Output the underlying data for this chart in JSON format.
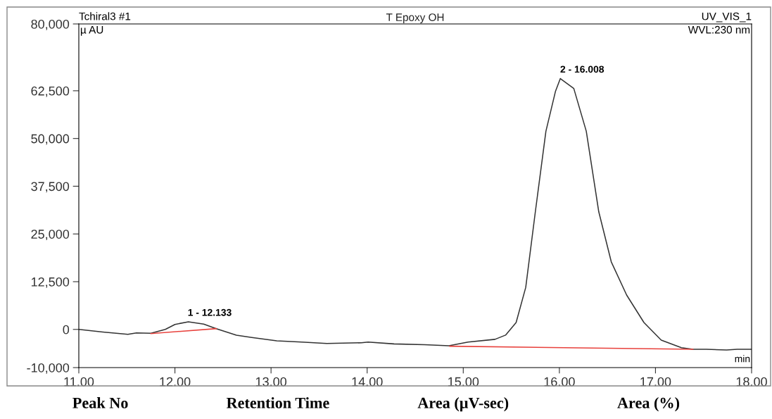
{
  "chart_data": {
    "type": "line",
    "title": "T Epoxy OH",
    "xlabel": "min",
    "ylabel": "µ AU",
    "annotations": [
      "Tchiral3 #1",
      "UV_VIS_1",
      "WVL:230 nm",
      "Peak No",
      "Retention Time",
      "Area (µV-sec)",
      "Area (%)",
      {
        "text": "1 - 12.133",
        "x": 12.133,
        "y": 2000
      },
      {
        "text": "2 - 16.008",
        "x": 16.008,
        "y": 65700
      }
    ],
    "series": [
      {
        "color": "#333333",
        "x": [
          11.0,
          11.25,
          11.51,
          11.6,
          11.75,
          11.9,
          12.0,
          12.14,
          12.3,
          12.43,
          12.64,
          12.8,
          13.06,
          13.32,
          13.58,
          13.94,
          14.01,
          14.28,
          14.6,
          14.85,
          15.05,
          15.33,
          15.44,
          15.55,
          15.65,
          15.75,
          15.86,
          15.96,
          16.01,
          16.15,
          16.28,
          16.41,
          16.54,
          16.7,
          16.88,
          17.06,
          17.27,
          17.39,
          17.53,
          17.74,
          17.85,
          18.0
        ],
        "values": [
          0,
          -700,
          -1300,
          -900,
          -1000,
          0,
          1300,
          2000,
          1400,
          200,
          -1500,
          -2100,
          -3000,
          -3300,
          -3700,
          -3500,
          -3300,
          -3800,
          -4000,
          -4300,
          -3300,
          -2600,
          -1500,
          1800,
          11000,
          30800,
          51900,
          62400,
          65700,
          63100,
          51900,
          30800,
          17700,
          9000,
          1800,
          -2800,
          -4800,
          -5200,
          -5200,
          -5400,
          -5200,
          -5200
        ]
      },
      {
        "color": "#e8413c",
        "x": [
          11.75,
          12.43
        ],
        "values": [
          -1100,
          200
        ]
      },
      {
        "color": "#e8413c",
        "x": [
          14.86,
          17.39
        ],
        "values": [
          -4400,
          -5200
        ]
      }
    ],
    "xlim": [
      11.0,
      18.0
    ],
    "xticks": [
      {
        "value": 11,
        "label": "11.00"
      },
      {
        "value": 12,
        "label": "12.00"
      },
      {
        "value": 13,
        "label": "13.00"
      },
      {
        "value": 14,
        "label": "14.00"
      },
      {
        "value": 15,
        "label": "15.00"
      },
      {
        "value": 16,
        "label": "16.00"
      },
      {
        "value": 17,
        "label": "17.00"
      },
      {
        "value": 18,
        "label": "18.00"
      }
    ],
    "ylim": [
      -10000,
      80000
    ],
    "yticks": [
      {
        "value": -10000,
        "label": "-10,000"
      },
      {
        "value": 0,
        "label": "0"
      },
      {
        "value": 12500,
        "label": "12,500"
      },
      {
        "value": 25000,
        "label": "25,000"
      },
      {
        "value": 37500,
        "label": "37,500"
      },
      {
        "value": 50000,
        "label": "50,000"
      },
      {
        "value": 62500,
        "label": "62,500"
      },
      {
        "value": 80000,
        "label": "80,000"
      }
    ],
    "grid": false
  }
}
